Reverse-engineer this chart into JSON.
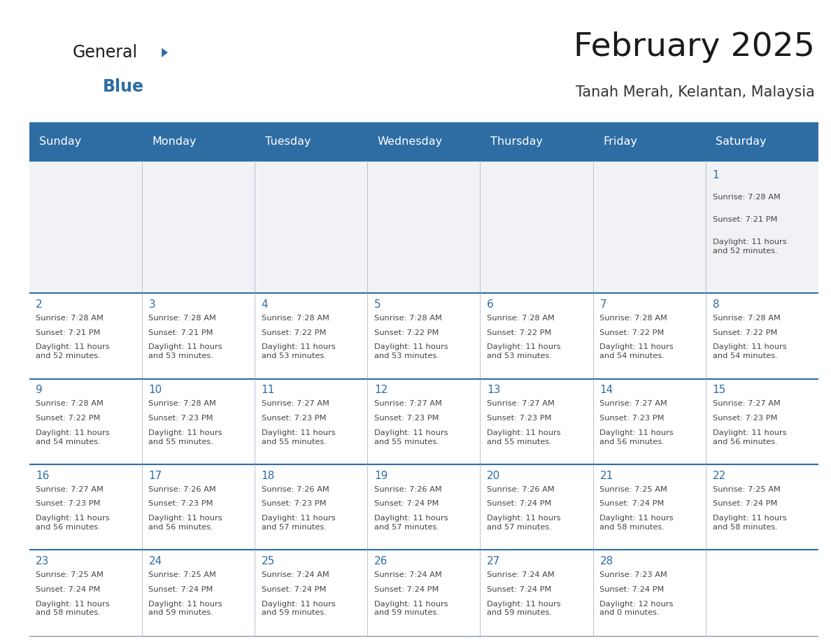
{
  "title": "February 2025",
  "subtitle": "Tanah Merah, Kelantan, Malaysia",
  "days_of_week": [
    "Sunday",
    "Monday",
    "Tuesday",
    "Wednesday",
    "Thursday",
    "Friday",
    "Saturday"
  ],
  "header_bg_color": "#2e6da4",
  "header_text_color": "#ffffff",
  "row1_bg_color": "#f0f2f5",
  "row_bg_color": "#ffffff",
  "separator_color": "#2e6da4",
  "thin_line_color": "#b0b8c8",
  "day_number_color": "#2e6da4",
  "text_color": "#444444",
  "logo_general_color": "#1a1a1a",
  "logo_blue_color": "#2e6da4",
  "calendar_data": [
    [
      null,
      null,
      null,
      null,
      null,
      null,
      {
        "day": 1,
        "sunrise": "7:28 AM",
        "sunset": "7:21 PM",
        "daylight_hours": 11,
        "daylight_minutes": 52
      }
    ],
    [
      {
        "day": 2,
        "sunrise": "7:28 AM",
        "sunset": "7:21 PM",
        "daylight_hours": 11,
        "daylight_minutes": 52
      },
      {
        "day": 3,
        "sunrise": "7:28 AM",
        "sunset": "7:21 PM",
        "daylight_hours": 11,
        "daylight_minutes": 53
      },
      {
        "day": 4,
        "sunrise": "7:28 AM",
        "sunset": "7:22 PM",
        "daylight_hours": 11,
        "daylight_minutes": 53
      },
      {
        "day": 5,
        "sunrise": "7:28 AM",
        "sunset": "7:22 PM",
        "daylight_hours": 11,
        "daylight_minutes": 53
      },
      {
        "day": 6,
        "sunrise": "7:28 AM",
        "sunset": "7:22 PM",
        "daylight_hours": 11,
        "daylight_minutes": 53
      },
      {
        "day": 7,
        "sunrise": "7:28 AM",
        "sunset": "7:22 PM",
        "daylight_hours": 11,
        "daylight_minutes": 54
      },
      {
        "day": 8,
        "sunrise": "7:28 AM",
        "sunset": "7:22 PM",
        "daylight_hours": 11,
        "daylight_minutes": 54
      }
    ],
    [
      {
        "day": 9,
        "sunrise": "7:28 AM",
        "sunset": "7:22 PM",
        "daylight_hours": 11,
        "daylight_minutes": 54
      },
      {
        "day": 10,
        "sunrise": "7:28 AM",
        "sunset": "7:23 PM",
        "daylight_hours": 11,
        "daylight_minutes": 55
      },
      {
        "day": 11,
        "sunrise": "7:27 AM",
        "sunset": "7:23 PM",
        "daylight_hours": 11,
        "daylight_minutes": 55
      },
      {
        "day": 12,
        "sunrise": "7:27 AM",
        "sunset": "7:23 PM",
        "daylight_hours": 11,
        "daylight_minutes": 55
      },
      {
        "day": 13,
        "sunrise": "7:27 AM",
        "sunset": "7:23 PM",
        "daylight_hours": 11,
        "daylight_minutes": 55
      },
      {
        "day": 14,
        "sunrise": "7:27 AM",
        "sunset": "7:23 PM",
        "daylight_hours": 11,
        "daylight_minutes": 56
      },
      {
        "day": 15,
        "sunrise": "7:27 AM",
        "sunset": "7:23 PM",
        "daylight_hours": 11,
        "daylight_minutes": 56
      }
    ],
    [
      {
        "day": 16,
        "sunrise": "7:27 AM",
        "sunset": "7:23 PM",
        "daylight_hours": 11,
        "daylight_minutes": 56
      },
      {
        "day": 17,
        "sunrise": "7:26 AM",
        "sunset": "7:23 PM",
        "daylight_hours": 11,
        "daylight_minutes": 56
      },
      {
        "day": 18,
        "sunrise": "7:26 AM",
        "sunset": "7:23 PM",
        "daylight_hours": 11,
        "daylight_minutes": 57
      },
      {
        "day": 19,
        "sunrise": "7:26 AM",
        "sunset": "7:24 PM",
        "daylight_hours": 11,
        "daylight_minutes": 57
      },
      {
        "day": 20,
        "sunrise": "7:26 AM",
        "sunset": "7:24 PM",
        "daylight_hours": 11,
        "daylight_minutes": 57
      },
      {
        "day": 21,
        "sunrise": "7:25 AM",
        "sunset": "7:24 PM",
        "daylight_hours": 11,
        "daylight_minutes": 58
      },
      {
        "day": 22,
        "sunrise": "7:25 AM",
        "sunset": "7:24 PM",
        "daylight_hours": 11,
        "daylight_minutes": 58
      }
    ],
    [
      {
        "day": 23,
        "sunrise": "7:25 AM",
        "sunset": "7:24 PM",
        "daylight_hours": 11,
        "daylight_minutes": 58
      },
      {
        "day": 24,
        "sunrise": "7:25 AM",
        "sunset": "7:24 PM",
        "daylight_hours": 11,
        "daylight_minutes": 59
      },
      {
        "day": 25,
        "sunrise": "7:24 AM",
        "sunset": "7:24 PM",
        "daylight_hours": 11,
        "daylight_minutes": 59
      },
      {
        "day": 26,
        "sunrise": "7:24 AM",
        "sunset": "7:24 PM",
        "daylight_hours": 11,
        "daylight_minutes": 59
      },
      {
        "day": 27,
        "sunrise": "7:24 AM",
        "sunset": "7:24 PM",
        "daylight_hours": 11,
        "daylight_minutes": 59
      },
      {
        "day": 28,
        "sunrise": "7:23 AM",
        "sunset": "7:24 PM",
        "daylight_hours": 12,
        "daylight_minutes": 0
      },
      null
    ]
  ]
}
